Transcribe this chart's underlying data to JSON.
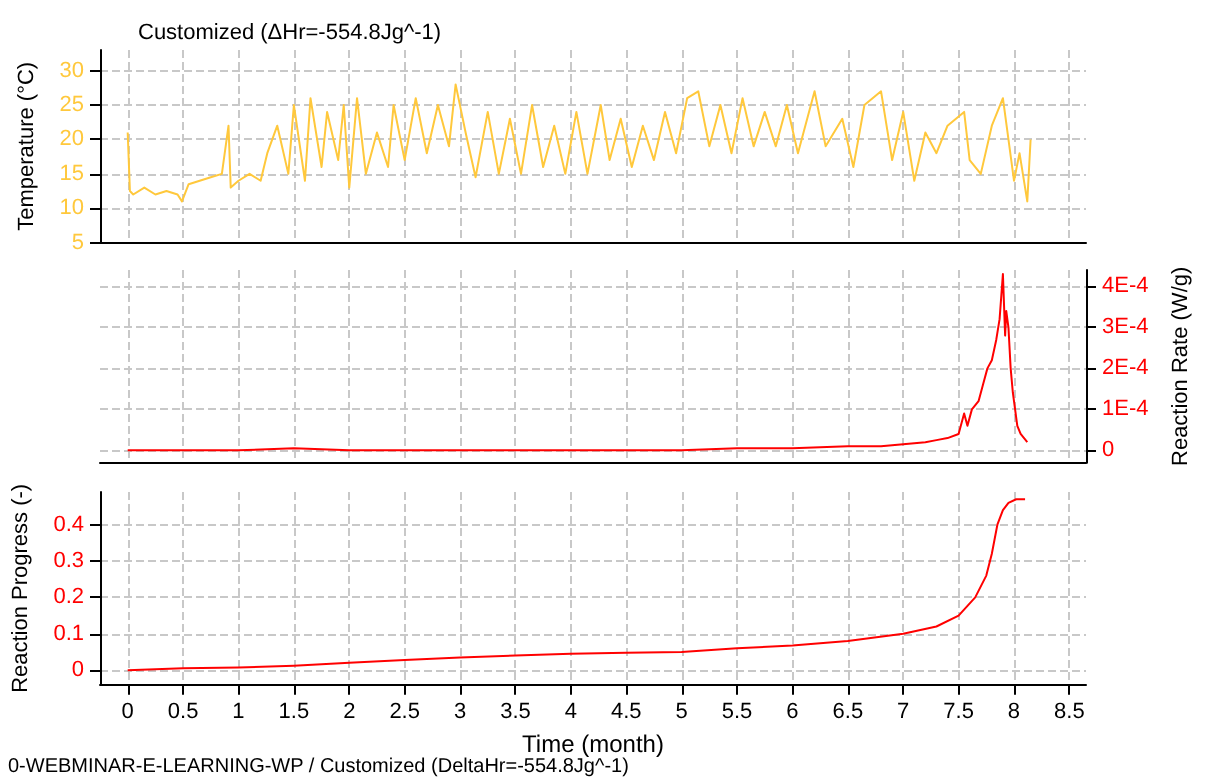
{
  "chart_data": [
    {
      "type": "line",
      "title": "Customized (ΔHr=-554.8Jg^-1)",
      "ylabel": "Temperature (°C)",
      "xlim": [
        -0.25,
        8.65
      ],
      "xticks": [
        0,
        0.5,
        1,
        1.5,
        2,
        2.5,
        3,
        3.5,
        4,
        4.5,
        5,
        5.5,
        6,
        6.5,
        7,
        7.5,
        8,
        8.5
      ],
      "ylim": [
        5,
        33
      ],
      "yticks": [
        5,
        10,
        15,
        20,
        25,
        30
      ],
      "tick_labels": "y",
      "grid": true,
      "marker": "none",
      "series": [
        {
          "color": "#ffc83c",
          "x": [
            0,
            0.02,
            0.05,
            0.15,
            0.25,
            0.35,
            0.45,
            0.49,
            0.55,
            0.65,
            0.75,
            0.85,
            0.91,
            0.93,
            1.0,
            1.1,
            1.2,
            1.26,
            1.35,
            1.45,
            1.5,
            1.6,
            1.65,
            1.75,
            1.8,
            1.9,
            1.95,
            2.0,
            2.07,
            2.15,
            2.25,
            2.35,
            2.4,
            2.5,
            2.6,
            2.7,
            2.8,
            2.9,
            2.96,
            3.05,
            3.14,
            3.25,
            3.35,
            3.45,
            3.55,
            3.65,
            3.75,
            3.85,
            3.95,
            4.05,
            4.15,
            4.27,
            4.35,
            4.45,
            4.55,
            4.65,
            4.75,
            4.85,
            4.95,
            5.05,
            5.15,
            5.25,
            5.35,
            5.45,
            5.55,
            5.65,
            5.75,
            5.85,
            5.95,
            6.05,
            6.2,
            6.3,
            6.45,
            6.55,
            6.65,
            6.8,
            6.9,
            7.0,
            7.1,
            7.2,
            7.3,
            7.4,
            7.55,
            7.6,
            7.7,
            7.8,
            7.9,
            8.0,
            8.05,
            8.12,
            8.15
          ],
          "values": [
            21,
            12.5,
            12,
            13,
            12,
            12.5,
            12,
            11,
            13.5,
            14,
            14.5,
            15,
            22,
            13,
            14,
            15,
            14,
            18,
            22,
            15,
            25,
            14,
            26,
            16,
            24,
            17,
            25,
            13,
            26,
            15,
            21,
            16,
            25,
            17,
            26,
            18,
            25,
            19,
            28,
            21,
            14.5,
            24,
            15,
            23,
            15,
            25,
            16,
            22,
            15,
            24,
            15,
            25,
            17,
            23,
            16,
            22,
            17,
            24,
            18,
            26,
            27,
            19,
            25,
            18,
            26,
            19,
            24,
            19,
            25,
            18,
            27,
            19,
            23,
            16,
            25,
            27,
            17,
            24,
            14,
            21,
            18,
            22,
            24,
            17,
            15,
            22,
            26,
            14,
            18,
            11,
            20
          ]
        }
      ]
    },
    {
      "type": "line",
      "y2label": "Reaction Rate (W/g)",
      "xlim": [
        -0.25,
        8.65
      ],
      "xticks": [
        0,
        0.5,
        1,
        1.5,
        2,
        2.5,
        3,
        3.5,
        4,
        4.5,
        5,
        5.5,
        6,
        6.5,
        7,
        7.5,
        8,
        8.5
      ],
      "y2lim": [
        -3e-05,
        0.00044
      ],
      "y2ticks": [
        {
          "value": 0,
          "label": "0"
        },
        {
          "value": 0.0001,
          "label": "1E-4"
        },
        {
          "value": 0.0002,
          "label": "2E-4"
        },
        {
          "value": 0.0003,
          "label": "3E-4"
        },
        {
          "value": 0.0004,
          "label": "4E-4"
        }
      ],
      "tick_labels": "y",
      "grid": true,
      "marker": "none",
      "series": [
        {
          "color": "#ff0000",
          "axis": "y2",
          "x": [
            0,
            1,
            1.5,
            2,
            3,
            4,
            5,
            5.5,
            6,
            6.5,
            6.8,
            7.0,
            7.2,
            7.3,
            7.4,
            7.5,
            7.55,
            7.58,
            7.62,
            7.68,
            7.72,
            7.76,
            7.8,
            7.84,
            7.87,
            7.9,
            7.92,
            7.93,
            7.95,
            7.97,
            7.99,
            8.01,
            8.03,
            8.06,
            8.12
          ],
          "values": [
            0,
            0,
            5e-06,
            0,
            0,
            0,
            0,
            5e-06,
            5e-06,
            1e-05,
            1e-05,
            1.5e-05,
            2e-05,
            2.5e-05,
            3e-05,
            4e-05,
            9e-05,
            6e-05,
            0.0001,
            0.00012,
            0.00016,
            0.0002,
            0.00022,
            0.00027,
            0.00032,
            0.00043,
            0.00028,
            0.00034,
            0.0003,
            0.0002,
            0.00014,
            0.0001,
            6e-05,
            4e-05,
            2e-05
          ]
        }
      ]
    },
    {
      "type": "line",
      "xlabel": "Time (month)",
      "ylabel": "Reaction Progress (-)",
      "xlim": [
        -0.25,
        8.65
      ],
      "xticks": [
        0,
        0.5,
        1,
        1.5,
        2,
        2.5,
        3,
        3.5,
        4,
        4.5,
        5,
        5.5,
        6,
        6.5,
        7,
        7.5,
        8,
        8.5
      ],
      "ylim": [
        -0.04,
        0.49
      ],
      "yticks": [
        0,
        0.1,
        0.2,
        0.3,
        0.4
      ],
      "grid": true,
      "marker": "none",
      "annotations": [
        "0-WEBMINAR-E-LEARNING-WP / Customized (DeltaHr=-554.8Jg^-1)"
      ],
      "series": [
        {
          "color": "#ff0000",
          "x": [
            0,
            0.5,
            1,
            1.5,
            2,
            2.5,
            3,
            3.5,
            4,
            4.5,
            5,
            5.5,
            6,
            6.5,
            7,
            7.3,
            7.5,
            7.65,
            7.75,
            7.8,
            7.85,
            7.9,
            7.95,
            8.02,
            8.1
          ],
          "values": [
            0,
            0.005,
            0.007,
            0.012,
            0.02,
            0.028,
            0.035,
            0.04,
            0.045,
            0.048,
            0.05,
            0.06,
            0.068,
            0.08,
            0.1,
            0.12,
            0.15,
            0.2,
            0.26,
            0.32,
            0.4,
            0.44,
            0.46,
            0.47,
            0.47
          ]
        }
      ]
    }
  ]
}
